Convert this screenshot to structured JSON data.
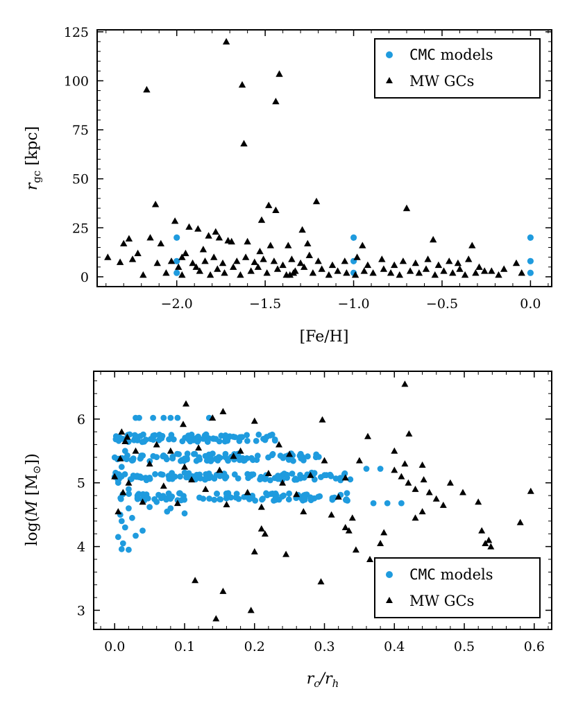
{
  "figure": {
    "colors": {
      "cmc": "#1f9bde",
      "mw": "#000000"
    }
  },
  "chart_data": [
    {
      "type": "scatter",
      "title": "",
      "xlabel": "[Fe/H]",
      "ylabel": {
        "main": "r",
        "sub": "gc",
        "rest": " [kpc]"
      },
      "xlim": [
        -2.45,
        0.12
      ],
      "ylim": [
        -5,
        126
      ],
      "xticks": [
        -2.0,
        -1.5,
        -1.0,
        -0.5,
        0.0
      ],
      "xtick_labels": [
        "−2.0",
        "−1.5",
        "−1.0",
        "−0.5",
        "0.0"
      ],
      "yticks": [
        0,
        25,
        50,
        75,
        100,
        125
      ],
      "ytick_labels": [
        "0",
        "25",
        "50",
        "75",
        "100",
        "125"
      ],
      "legend": {
        "position": "top-right",
        "entries": [
          {
            "label_mono": "CMC",
            "label_rest": " models"
          },
          {
            "label": "MW GCs"
          }
        ]
      },
      "series": [
        {
          "name": "CMC models",
          "marker": "circle",
          "points": [
            [
              -2,
              2
            ],
            [
              -2,
              8
            ],
            [
              -2,
              20
            ],
            [
              -1,
              2
            ],
            [
              -1,
              8
            ],
            [
              -1,
              20
            ],
            [
              0,
              2
            ],
            [
              0,
              8
            ],
            [
              0,
              20
            ]
          ]
        },
        {
          "name": "MW GCs",
          "marker": "triangle",
          "points": [
            [
              -1.72,
              120
            ],
            [
              -1.42,
              103.5
            ],
            [
              -2.17,
              95.5
            ],
            [
              -1.63,
              98
            ],
            [
              -1.44,
              89.5
            ],
            [
              -1.62,
              68
            ],
            [
              -1.21,
              38.5
            ],
            [
              -2.12,
              37
            ],
            [
              -1.48,
              36.5
            ],
            [
              -1.44,
              34
            ],
            [
              -0.7,
              35
            ],
            [
              -1.52,
              29
            ],
            [
              -2.01,
              28.5
            ],
            [
              -1.93,
              25.5
            ],
            [
              -1.88,
              24.5
            ],
            [
              -1.29,
              24
            ],
            [
              -1.78,
              23
            ],
            [
              -1.82,
              21
            ],
            [
              -2.15,
              20
            ],
            [
              -2.27,
              19.5
            ],
            [
              -1.76,
              20
            ],
            [
              -1.71,
              18.5
            ],
            [
              -1.6,
              18
            ],
            [
              -0.55,
              19
            ],
            [
              -1.47,
              16
            ],
            [
              -1.37,
              16
            ],
            [
              -2.3,
              17
            ],
            [
              -2.09,
              17
            ],
            [
              -1.69,
              18
            ],
            [
              -1.26,
              17
            ],
            [
              -0.95,
              16
            ],
            [
              -0.33,
              16
            ],
            [
              -2.22,
              12
            ],
            [
              -1.95,
              12
            ],
            [
              -1.85,
              14
            ],
            [
              -1.53,
              13
            ],
            [
              -2.39,
              10
            ],
            [
              -2.32,
              7.5
            ],
            [
              -2.25,
              9
            ],
            [
              -2.11,
              7
            ],
            [
              -2.03,
              8
            ],
            [
              -1.97,
              10
            ],
            [
              -1.91,
              7
            ],
            [
              -1.84,
              8
            ],
            [
              -1.79,
              10
            ],
            [
              -1.74,
              7
            ],
            [
              -1.66,
              8
            ],
            [
              -1.61,
              10
            ],
            [
              -1.56,
              7.5
            ],
            [
              -1.51,
              9
            ],
            [
              -1.45,
              8
            ],
            [
              -1.4,
              6
            ],
            [
              -1.35,
              9
            ],
            [
              -1.3,
              7
            ],
            [
              -1.25,
              11
            ],
            [
              -1.2,
              8
            ],
            [
              -1.12,
              6
            ],
            [
              -1.05,
              8
            ],
            [
              -0.98,
              10
            ],
            [
              -0.92,
              6
            ],
            [
              -0.84,
              9
            ],
            [
              -0.77,
              6
            ],
            [
              -0.72,
              8
            ],
            [
              -0.65,
              7
            ],
            [
              -0.58,
              9
            ],
            [
              -0.52,
              6
            ],
            [
              -0.46,
              8
            ],
            [
              -0.41,
              7
            ],
            [
              -0.35,
              9
            ],
            [
              -0.29,
              5
            ],
            [
              -0.22,
              3
            ],
            [
              -0.15,
              4
            ],
            [
              -0.08,
              7
            ],
            [
              -0.05,
              2
            ],
            [
              -2.19,
              1
            ],
            [
              -2.06,
              2
            ],
            [
              -1.99,
              5
            ],
            [
              -1.87,
              3
            ],
            [
              -1.81,
              1
            ],
            [
              -1.77,
              4
            ],
            [
              -1.73,
              2
            ],
            [
              -1.68,
              5
            ],
            [
              -1.64,
              1
            ],
            [
              -1.58,
              3
            ],
            [
              -1.54,
              5
            ],
            [
              -1.49,
              2
            ],
            [
              -1.43,
              4
            ],
            [
              -1.38,
              1
            ],
            [
              -1.33,
              3
            ],
            [
              -1.28,
              5
            ],
            [
              -1.23,
              2
            ],
            [
              -1.18,
              4
            ],
            [
              -1.14,
              1
            ],
            [
              -1.09,
              3
            ],
            [
              -1.04,
              2
            ],
            [
              -0.99,
              1
            ],
            [
              -0.94,
              3
            ],
            [
              -0.89,
              2
            ],
            [
              -0.83,
              4
            ],
            [
              -0.79,
              2
            ],
            [
              -0.74,
              1
            ],
            [
              -0.68,
              3
            ],
            [
              -0.63,
              2
            ],
            [
              -0.59,
              4
            ],
            [
              -0.54,
              1
            ],
            [
              -0.49,
              3
            ],
            [
              -0.44,
              2
            ],
            [
              -0.4,
              4
            ],
            [
              -0.37,
              1
            ],
            [
              -0.31,
              2
            ],
            [
              -0.26,
              3
            ],
            [
              -0.18,
              1
            ],
            [
              -1.89,
              5
            ],
            [
              -1.97,
              1
            ],
            [
              -1.34,
              2
            ],
            [
              -1.36,
              1
            ]
          ]
        }
      ]
    },
    {
      "type": "scatter",
      "title": "",
      "xlabel": {
        "a": "r",
        "asub": "c",
        "b": "/r",
        "bsub": "h"
      },
      "ylabel": {
        "pre": "log(",
        "mid": "M",
        "post": " [M",
        "sub": "⊙",
        "close": "])"
      },
      "xlim": [
        -0.03,
        0.625
      ],
      "ylim": [
        2.7,
        6.75
      ],
      "xticks": [
        0.0,
        0.1,
        0.2,
        0.3,
        0.4,
        0.5,
        0.6
      ],
      "xtick_labels": [
        "0.0",
        "0.1",
        "0.2",
        "0.3",
        "0.4",
        "0.5",
        "0.6"
      ],
      "yticks": [
        3,
        4,
        5,
        6
      ],
      "ytick_labels": [
        "3",
        "4",
        "5",
        "6"
      ],
      "legend": {
        "position": "bottom-right",
        "entries": [
          {
            "label_mono": "CMC",
            "label_rest": " models"
          },
          {
            "label": "MW GCs"
          }
        ]
      },
      "cmc_bands": [
        {
          "y": 5.7,
          "xmax": 0.24,
          "n": 90
        },
        {
          "y": 5.4,
          "xmax": 0.3,
          "n": 95
        },
        {
          "y": 5.1,
          "xmax": 0.34,
          "n": 105
        },
        {
          "y": 4.78,
          "xmax": 0.34,
          "n": 95
        }
      ],
      "series": [
        {
          "name": "CMC models",
          "marker": "circle",
          "points": [
            [
              0.03,
              6.02
            ],
            [
              0.035,
              6.02
            ],
            [
              0.055,
              6.02
            ],
            [
              0.07,
              6.02
            ],
            [
              0.08,
              6.02
            ],
            [
              0.09,
              6.02
            ],
            [
              0.135,
              6.02
            ],
            [
              0.01,
              3.96
            ],
            [
              0.02,
              3.95
            ],
            [
              0.005,
              4.15
            ],
            [
              0.015,
              4.3
            ],
            [
              0.008,
              4.5
            ],
            [
              0.02,
              4.6
            ],
            [
              0.03,
              4.17
            ],
            [
              0.04,
              4.25
            ],
            [
              0.012,
              4.05
            ],
            [
              0.01,
              4.4
            ],
            [
              0.025,
              4.45
            ],
            [
              0.37,
              4.68
            ],
            [
              0.39,
              4.68
            ],
            [
              0.41,
              4.68
            ],
            [
              0.38,
              5.22
            ],
            [
              0.36,
              5.22
            ],
            [
              0.075,
              4.55
            ],
            [
              0.1,
              4.52
            ],
            [
              0.05,
              4.62
            ],
            [
              0.06,
              4.7
            ],
            [
              0.08,
              4.6
            ],
            [
              0.005,
              5.0
            ],
            [
              0.01,
              5.25
            ],
            [
              0.015,
              5.5
            ],
            [
              0.02,
              4.9
            ],
            [
              0.03,
              5.1
            ],
            [
              0.025,
              5.35
            ]
          ]
        },
        {
          "name": "MW GCs",
          "marker": "triangle",
          "points": [
            [
              0.415,
              6.55
            ],
            [
              0.102,
              6.24
            ],
            [
              0.14,
              6.02
            ],
            [
              0.155,
              6.12
            ],
            [
              0.098,
              5.92
            ],
            [
              0.2,
              5.97
            ],
            [
              0.297,
              5.99
            ],
            [
              0.421,
              5.77
            ],
            [
              0.362,
              5.73
            ],
            [
              0.01,
              5.8
            ],
            [
              0.015,
              5.65
            ],
            [
              0.06,
              5.6
            ],
            [
              0.12,
              5.55
            ],
            [
              0.18,
              5.5
            ],
            [
              0.25,
              5.45
            ],
            [
              0.3,
              5.35
            ],
            [
              0.05,
              5.3
            ],
            [
              0.1,
              5.25
            ],
            [
              0.15,
              5.2
            ],
            [
              0.22,
              5.15
            ],
            [
              0.28,
              5.12
            ],
            [
              0.33,
              5.08
            ],
            [
              0.02,
              5.0
            ],
            [
              0.07,
              4.95
            ],
            [
              0.13,
              4.9
            ],
            [
              0.19,
              4.85
            ],
            [
              0.26,
              4.82
            ],
            [
              0.32,
              4.78
            ],
            [
              0.04,
              4.7
            ],
            [
              0.09,
              4.68
            ],
            [
              0.16,
              4.66
            ],
            [
              0.21,
              4.62
            ],
            [
              0.27,
              4.55
            ],
            [
              0.31,
              4.5
            ],
            [
              0.34,
              4.45
            ],
            [
              0.44,
              5.28
            ],
            [
              0.442,
              5.05
            ],
            [
              0.4,
              5.2
            ],
            [
              0.42,
              5.0
            ],
            [
              0.43,
              4.9
            ],
            [
              0.45,
              4.85
            ],
            [
              0.46,
              4.75
            ],
            [
              0.48,
              5.0
            ],
            [
              0.498,
              4.85
            ],
            [
              0.47,
              4.65
            ],
            [
              0.52,
              4.7
            ],
            [
              0.595,
              4.87
            ],
            [
              0.58,
              4.38
            ],
            [
              0.525,
              4.25
            ],
            [
              0.53,
              4.05
            ],
            [
              0.535,
              4.1
            ],
            [
              0.538,
              4.0
            ],
            [
              0.44,
              4.55
            ],
            [
              0.43,
              4.45
            ],
            [
              0.38,
              4.05
            ],
            [
              0.385,
              4.22
            ],
            [
              0.365,
              3.8
            ],
            [
              0.345,
              3.95
            ],
            [
              0.2,
              3.92
            ],
            [
              0.21,
              4.28
            ],
            [
              0.215,
              4.2
            ],
            [
              0.245,
              3.88
            ],
            [
              0.295,
              3.45
            ],
            [
              0.115,
              3.47
            ],
            [
              0.155,
              3.3
            ],
            [
              0.145,
              2.87
            ],
            [
              0.195,
              3.0
            ],
            [
              0.335,
              4.25
            ],
            [
              0.33,
              4.3
            ],
            [
              0.4,
              5.5
            ],
            [
              0.41,
              5.1
            ],
            [
              0.415,
              5.3
            ],
            [
              0.35,
              5.35
            ],
            [
              0.0,
              5.1
            ],
            [
              0.005,
              4.55
            ],
            [
              0.03,
              5.5
            ],
            [
              0.008,
              5.38
            ],
            [
              0.012,
              4.85
            ],
            [
              0.018,
              5.72
            ],
            [
              0.08,
              5.5
            ],
            [
              0.11,
              5.05
            ],
            [
              0.17,
              5.42
            ],
            [
              0.24,
              5.0
            ],
            [
              0.235,
              5.6
            ]
          ]
        }
      ]
    }
  ]
}
